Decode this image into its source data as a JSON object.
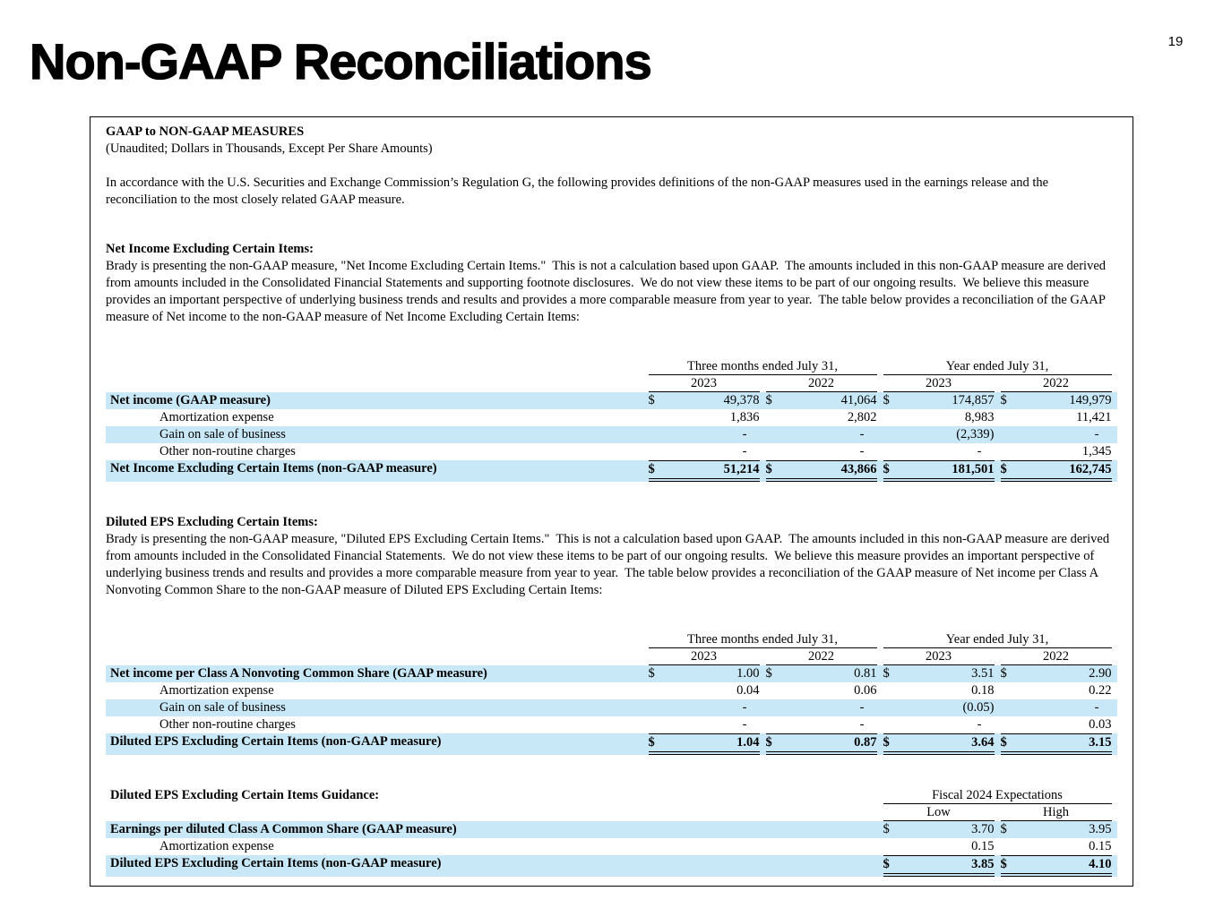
{
  "page": {
    "title": "Non-GAAP Reconciliations",
    "page_number": "19"
  },
  "colors": {
    "row_highlight": "#C9E8F7"
  },
  "doc": {
    "heading1": "GAAP to NON-GAAP MEASURES",
    "heading2": "(Unaudited; Dollars in Thousands, Except Per Share Amounts)",
    "intro": "In accordance with the U.S. Securities and Exchange Commission’s Regulation G, the following provides definitions of the non-GAAP measures used in the earnings release and the reconciliation to the most closely related GAAP measure.",
    "sections": [
      {
        "heading": "Net Income Excluding Certain Items:",
        "body": "Brady is presenting the non-GAAP measure, \"Net Income Excluding Certain Items.\"  This is not a calculation based upon GAAP.  The amounts included in this non-GAAP measure are derived from amounts included in the Consolidated Financial Statements and supporting footnote disclosures.  We do not view these items to be part of our ongoing results.  We believe this measure provides an important perspective of underlying business trends and results and provides a more comparable measure from year to year.  The table below provides a reconciliation of the GAAP measure of Net income to the non-GAAP measure of Net Income Excluding Certain Items:"
      },
      {
        "heading": "Diluted EPS Excluding Certain Items:",
        "body": "Brady is presenting the non-GAAP measure, \"Diluted EPS Excluding Certain Items.\"  This is not a calculation based upon GAAP.  The amounts included in this non-GAAP measure are derived from amounts included in the Consolidated Financial Statements.  We do not view these items to be part of our ongoing results.  We believe this measure provides an important perspective of underlying business trends and results and provides a more comparable measure from year to year.  The table below provides a reconciliation of the GAAP measure of Net income per Class A Nonvoting Common Share to the non-GAAP measure of Diluted EPS Excluding Certain Items:"
      }
    ]
  },
  "tables": {
    "net_income": {
      "col_groups": [
        {
          "label": "Three months ended July 31,",
          "span": 2
        },
        {
          "label": "Year ended July 31,",
          "span": 2
        }
      ],
      "col_headers": [
        "2023",
        "2022",
        "2023",
        "2022"
      ],
      "rows": [
        {
          "label": "Net income (GAAP measure)",
          "bold": true,
          "blue": true,
          "dollar": true,
          "values": [
            "49,378",
            "41,064",
            "174,857",
            "149,979"
          ]
        },
        {
          "label": "Amortization expense",
          "indent": true,
          "values": [
            "1,836",
            "2,802",
            "8,983",
            "11,421"
          ]
        },
        {
          "label": "Gain on sale of business",
          "indent": true,
          "blue": true,
          "values": [
            "-",
            "-",
            "(2,339)",
            "-"
          ]
        },
        {
          "label": "Other non-routine charges",
          "indent": true,
          "values": [
            "-",
            "-",
            "-",
            "1,345"
          ]
        },
        {
          "label": "Net Income Excluding Certain Items (non-GAAP measure)",
          "bold": true,
          "blue": true,
          "dollar": true,
          "total": true,
          "values": [
            "51,214",
            "43,866",
            "181,501",
            "162,745"
          ]
        }
      ]
    },
    "eps": {
      "col_groups": [
        {
          "label": "Three months ended July 31,",
          "span": 2
        },
        {
          "label": "Year ended July 31,",
          "span": 2
        }
      ],
      "col_headers": [
        "2023",
        "2022",
        "2023",
        "2022"
      ],
      "rows": [
        {
          "label": "Net income per Class A Nonvoting Common Share (GAAP measure)",
          "bold": true,
          "blue": true,
          "dollar": true,
          "values": [
            "1.00",
            "0.81",
            "3.51",
            "2.90"
          ]
        },
        {
          "label": "Amortization expense",
          "indent": true,
          "values": [
            "0.04",
            "0.06",
            "0.18",
            "0.22"
          ]
        },
        {
          "label": "Gain on sale of business",
          "indent": true,
          "blue": true,
          "values": [
            "-",
            "-",
            "(0.05)",
            "-"
          ]
        },
        {
          "label": "Other non-routine charges",
          "indent": true,
          "values": [
            "-",
            "-",
            "-",
            "0.03"
          ]
        },
        {
          "label": "Diluted EPS Excluding Certain Items (non-GAAP measure)",
          "bold": true,
          "blue": true,
          "dollar": true,
          "total": true,
          "values": [
            "1.04",
            "0.87",
            "3.64",
            "3.15"
          ]
        }
      ]
    },
    "guidance": {
      "heading": "Diluted EPS Excluding Certain Items Guidance:",
      "col_groups": [
        {
          "label": "Fiscal 2024 Expectations",
          "span": 2
        }
      ],
      "col_headers": [
        "Low",
        "High"
      ],
      "rows": [
        {
          "label": "Earnings per diluted Class A Common Share (GAAP measure)",
          "bold": true,
          "blue": true,
          "dollar": true,
          "values": [
            "3.70",
            "3.95"
          ]
        },
        {
          "label": "Amortization expense",
          "indent": true,
          "values": [
            "0.15",
            "0.15"
          ]
        },
        {
          "label": "Diluted EPS Excluding Certain Items (non-GAAP measure)",
          "bold": true,
          "blue": true,
          "dollar": true,
          "total": true,
          "values": [
            "3.85",
            "4.10"
          ]
        }
      ]
    }
  }
}
